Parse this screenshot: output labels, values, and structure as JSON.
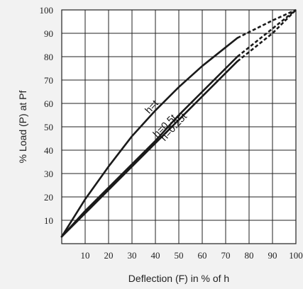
{
  "chart_data": {
    "type": "line",
    "xlabel": "Deflection (F) in % of h",
    "ylabel": "% Load (P) at Pf",
    "xlim": [
      0,
      100
    ],
    "ylim": [
      0,
      100
    ],
    "x_ticks": [
      10,
      20,
      30,
      40,
      50,
      60,
      70,
      80,
      90,
      100
    ],
    "y_ticks": [
      10,
      20,
      30,
      40,
      50,
      60,
      70,
      80,
      90,
      100
    ],
    "grid": true,
    "series": [
      {
        "name": "h=t",
        "solid": [
          [
            0,
            3
          ],
          [
            10,
            19
          ],
          [
            20,
            33
          ],
          [
            30,
            46
          ],
          [
            40,
            57
          ],
          [
            50,
            67
          ],
          [
            60,
            76
          ],
          [
            70,
            84
          ],
          [
            75,
            88
          ]
        ],
        "dashed": [
          [
            75,
            88
          ],
          [
            80,
            90.5
          ],
          [
            90,
            95.5
          ],
          [
            100,
            100
          ]
        ]
      },
      {
        "name": "h=0.5t",
        "solid": [
          [
            0,
            3
          ],
          [
            10,
            13
          ],
          [
            20,
            23
          ],
          [
            30,
            33
          ],
          [
            40,
            43
          ],
          [
            50,
            53
          ],
          [
            60,
            63
          ],
          [
            70,
            73
          ],
          [
            75,
            78
          ]
        ],
        "dashed": [
          [
            75,
            78
          ],
          [
            80,
            82
          ],
          [
            90,
            90
          ],
          [
            100,
            100
          ]
        ]
      },
      {
        "name": "h=0.25t",
        "solid": [
          [
            0,
            3
          ],
          [
            10,
            14
          ],
          [
            20,
            24
          ],
          [
            30,
            34
          ],
          [
            40,
            44
          ],
          [
            50,
            55
          ],
          [
            60,
            65
          ],
          [
            70,
            75
          ],
          [
            75,
            80
          ]
        ],
        "dashed": [
          [
            75,
            80
          ],
          [
            80,
            84
          ],
          [
            90,
            92
          ],
          [
            100,
            100
          ]
        ]
      }
    ],
    "annotations": [
      "h=t",
      "h=0.5t",
      "h=0.25t"
    ]
  }
}
